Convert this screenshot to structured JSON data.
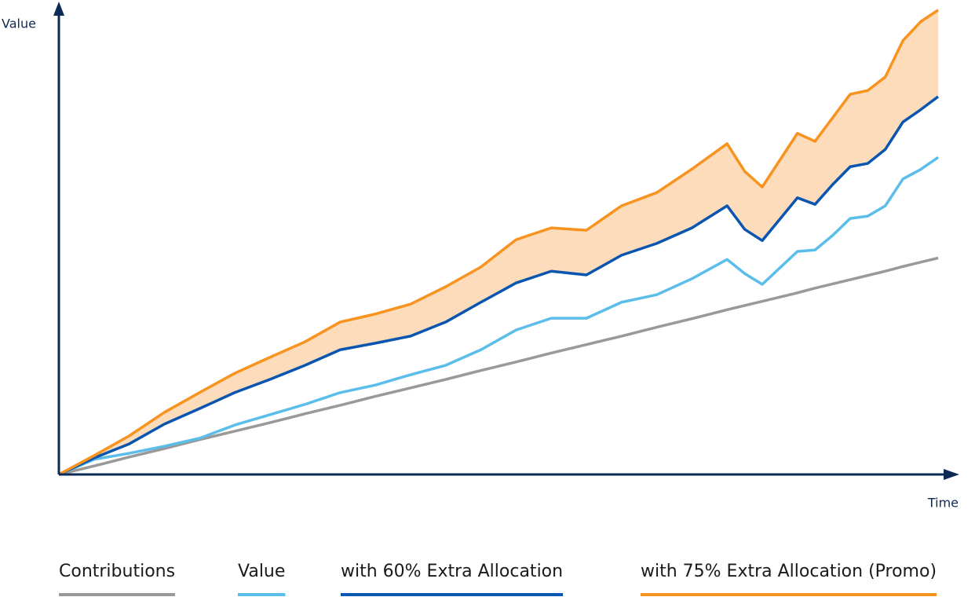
{
  "chart_data": {
    "type": "line",
    "ylabel": "Value",
    "xlabel": "Time",
    "x": [
      0,
      4,
      8,
      12,
      16,
      20,
      24,
      28,
      32,
      36,
      40,
      44,
      48,
      52,
      56,
      60,
      64,
      68,
      72,
      76,
      78,
      80,
      84,
      86,
      88,
      90,
      92,
      94,
      96,
      98,
      100
    ],
    "xlim": [
      0,
      100
    ],
    "ylim": [
      0,
      100
    ],
    "series": [
      {
        "name": "Contributions",
        "color": "#999999",
        "values": [
          0,
          1.8,
          3.7,
          5.5,
          7.4,
          9.2,
          11,
          12.9,
          14.7,
          16.6,
          18.4,
          20.2,
          22.1,
          23.9,
          25.8,
          27.6,
          29.4,
          31.3,
          33.1,
          35,
          35.9,
          36.8,
          38.6,
          39.6,
          40.5,
          41.4,
          42.3,
          43.2,
          44.2,
          45.1,
          46
        ]
      },
      {
        "name": "Value",
        "color": "#5bbde9",
        "values": [
          0,
          3.2,
          4.5,
          6.0,
          7.7,
          10.5,
          12.7,
          14.9,
          17.4,
          19.0,
          21.2,
          23.2,
          26.5,
          30.7,
          33.2,
          33.2,
          36.6,
          38.2,
          41.6,
          45.7,
          42.7,
          40.4,
          47.4,
          47.7,
          50.8,
          54.4,
          54.9,
          57.1,
          62.8,
          64.8,
          67.4
        ]
      },
      {
        "name": "with 60% Extra Allocation",
        "color": "#0a55b0",
        "values": [
          0,
          3.5,
          6.5,
          10.7,
          14.0,
          17.4,
          20.2,
          23.2,
          26.5,
          27.9,
          29.4,
          32.4,
          36.6,
          40.7,
          43.2,
          42.4,
          46.6,
          49.1,
          52.4,
          57.1,
          52.1,
          49.7,
          58.8,
          57.4,
          61.6,
          65.4,
          66.1,
          69.1,
          74.9,
          77.5,
          80.3
        ]
      },
      {
        "name": "with 75% Extra Allocation (Promo)",
        "color": "#f7931e",
        "values": [
          0,
          4.0,
          8.2,
          13.2,
          17.4,
          21.5,
          24.9,
          28.2,
          32.4,
          34.1,
          36.2,
          39.9,
          44.1,
          49.9,
          52.4,
          51.9,
          57.1,
          59.9,
          64.9,
          70.3,
          64.4,
          61.1,
          72.5,
          70.8,
          75.8,
          80.8,
          81.6,
          84.5,
          92.2,
          96.2,
          98.7
        ]
      }
    ],
    "fill_between": {
      "series": [
        2,
        3
      ],
      "color": "#fddcbc"
    },
    "legend": "bottom"
  }
}
